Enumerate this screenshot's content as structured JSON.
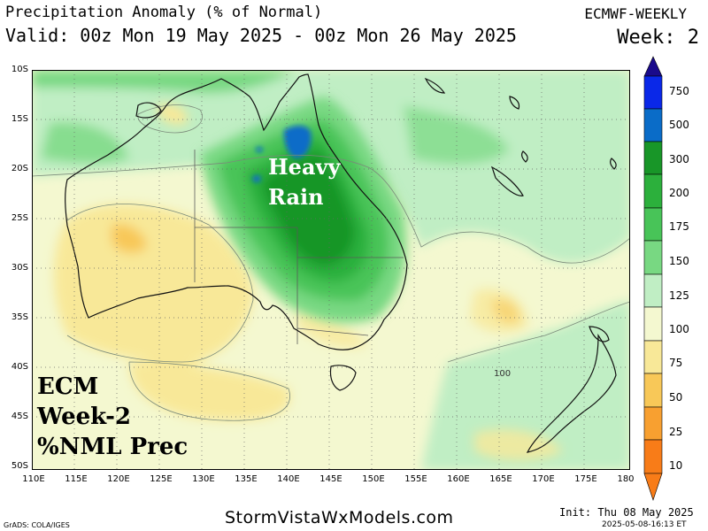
{
  "header": {
    "title": "Precipitation Anomaly (% of Normal)",
    "valid": "Valid: 00z Mon 19 May 2025 - 00z Mon 26 May 2025",
    "model": "ECMWF-WEEKLY",
    "week": "Week: 2"
  },
  "axes": {
    "lat_ticks": [
      "10S",
      "15S",
      "20S",
      "25S",
      "30S",
      "35S",
      "40S",
      "45S",
      "50S"
    ],
    "lon_ticks": [
      "110E",
      "115E",
      "120E",
      "125E",
      "130E",
      "135E",
      "140E",
      "145E",
      "150E",
      "155E",
      "160E",
      "165E",
      "170E",
      "175E",
      "180"
    ]
  },
  "legend": {
    "levels": [
      "750",
      "500",
      "300",
      "200",
      "175",
      "150",
      "125",
      "100",
      "75",
      "50",
      "25",
      "10"
    ],
    "colors": [
      "#1a0a8c",
      "#0a28e8",
      "#0a6cc8",
      "#189628",
      "#2cb03c",
      "#48c458",
      "#78d882",
      "#c0eec4",
      "#f4f8d0",
      "#f8e898",
      "#f8c858",
      "#f8a030",
      "#f87c18"
    ]
  },
  "annotations": {
    "map_label_lines": [
      "ECM",
      "Week-2",
      "%NML Prec"
    ],
    "heavy_rain_lines": [
      "Heavy",
      "Rain"
    ],
    "contour_label": "100"
  },
  "footer": {
    "site": "StormVistaWxModels.com",
    "grads": "GrADS: COLA/IGES",
    "init": "Init: Thu 08 May 2025",
    "stamp": "2025-05-08-16:13 ET"
  }
}
